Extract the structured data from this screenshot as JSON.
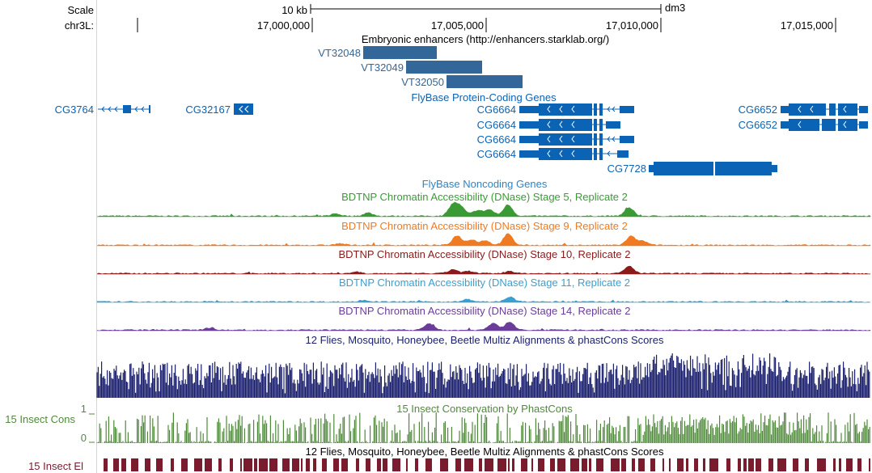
{
  "ruler": {
    "scale_label": "Scale",
    "chrom_label": "chr3L:",
    "scale_bar_text": "10 kb",
    "assembly": "dm3",
    "positions": [
      "17,000,000",
      "17,005,000",
      "17,010,000",
      "17,015,000"
    ]
  },
  "enhancers": {
    "title": "Embryonic enhancers (http://enhancers.starklab.org/)",
    "items": [
      "VT32048",
      "VT32049",
      "VT32050"
    ],
    "color": "#336699"
  },
  "genes": {
    "title": "FlyBase Protein-Coding Genes",
    "labels": [
      "CG3764",
      "CG32167",
      "CG6664",
      "CG6664",
      "CG6664",
      "CG6664",
      "CG6652",
      "CG6652",
      "CG7728"
    ],
    "color": "#0b63b5"
  },
  "noncoding": {
    "title": "FlyBase Noncoding Genes",
    "color": "#2c85c9"
  },
  "dnase_tracks": [
    {
      "title": "BDTNP Chromatin Accessibility (DNase) Stage 5, Replicate 2",
      "color": "#3a9b35"
    },
    {
      "title": "BDTNP Chromatin Accessibility (DNase) Stage 9, Replicate 2",
      "color": "#f07a21"
    },
    {
      "title": "BDTNP Chromatin Accessibility (DNase) Stage 10, Replicate 2",
      "color": "#8b1a1a"
    },
    {
      "title": "BDTNP Chromatin Accessibility (DNase) Stage 11, Replicate 2",
      "color": "#3b9fd0"
    },
    {
      "title": "BDTNP Chromatin Accessibility (DNase) Stage 14, Replicate 2",
      "color": "#6a3d9a"
    }
  ],
  "multiz": {
    "title": "12 Flies, Mosquito, Honeybee, Beetle Multiz Alignments & phastCons Scores",
    "color": "#1a1f6e"
  },
  "phastcons": {
    "title": "15 Insect Conservation by PhastCons",
    "side_label": "15 Insect Cons",
    "y_max": "1",
    "y_min": "0",
    "color": "#4f8a3b"
  },
  "elements": {
    "title": "12 Flies, Mosquito, Honeybee, Beetle Multiz Alignments & phastCons Scores",
    "side_label": "15 Insect El",
    "color": "#7b1c2e"
  }
}
